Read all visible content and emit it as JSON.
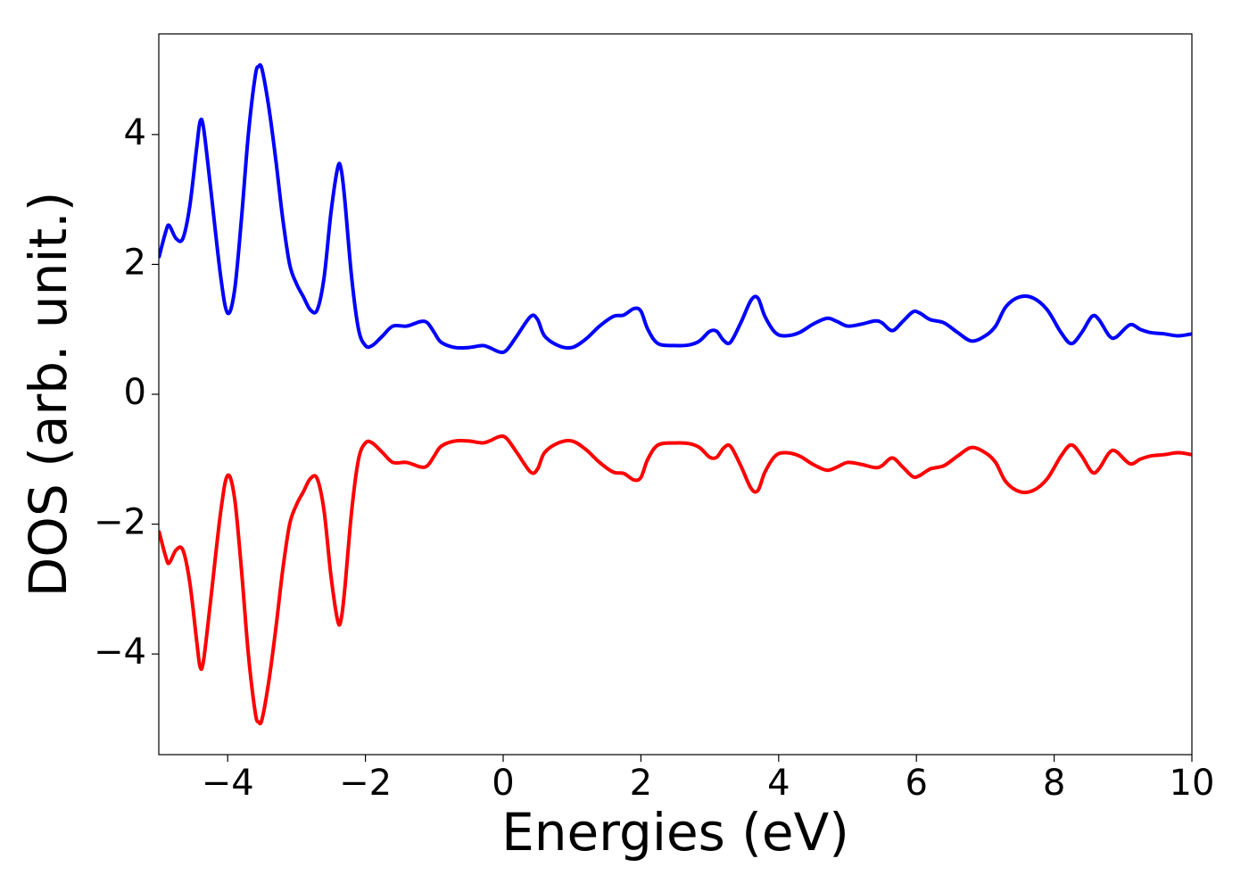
{
  "chart_data": {
    "type": "line",
    "xlabel": "Energies (eV)",
    "ylabel": "DOS (arb. unit.)",
    "x": [
      -5,
      -4.9,
      -4.85,
      -4.75,
      -4.65,
      -4.55,
      -4.45,
      -4.4,
      -4.35,
      -4.25,
      -4.1,
      -4.0,
      -3.9,
      -3.8,
      -3.7,
      -3.6,
      -3.55,
      -3.5,
      -3.4,
      -3.3,
      -3.2,
      -3.1,
      -3.0,
      -2.9,
      -2.8,
      -2.7,
      -2.6,
      -2.5,
      -2.4,
      -2.35,
      -2.3,
      -2.2,
      -2.1,
      -2.0,
      -1.9,
      -1.75,
      -1.6,
      -1.4,
      -1.2,
      -1.1,
      -1.0,
      -0.9,
      -0.7,
      -0.5,
      -0.3,
      -0.2,
      -0.05,
      0.05,
      0.2,
      0.4,
      0.5,
      0.6,
      0.8,
      1.0,
      1.2,
      1.4,
      1.6,
      1.75,
      1.9,
      2.0,
      2.1,
      2.25,
      2.5,
      2.7,
      2.85,
      3.0,
      3.1,
      3.2,
      3.3,
      3.45,
      3.6,
      3.7,
      3.8,
      3.95,
      4.1,
      4.3,
      4.5,
      4.7,
      4.85,
      5.0,
      5.2,
      5.4,
      5.5,
      5.65,
      5.8,
      5.95,
      6.05,
      6.2,
      6.4,
      6.6,
      6.8,
      7.0,
      7.15,
      7.3,
      7.5,
      7.7,
      7.9,
      8.1,
      8.25,
      8.4,
      8.55,
      8.65,
      8.8,
      8.9,
      9.1,
      9.25,
      9.4,
      9.6,
      9.8,
      10
    ],
    "series": [
      {
        "color": "#0000ff",
        "values": [
          2.1,
          2.5,
          2.6,
          2.4,
          2.4,
          2.9,
          3.8,
          4.2,
          4.1,
          3.2,
          1.8,
          1.25,
          1.6,
          2.7,
          4.0,
          4.9,
          5.05,
          5.0,
          4.4,
          3.6,
          2.7,
          2.0,
          1.7,
          1.5,
          1.3,
          1.3,
          1.8,
          2.8,
          3.5,
          3.45,
          3.0,
          1.8,
          1.0,
          0.75,
          0.75,
          0.9,
          1.05,
          1.05,
          1.12,
          1.1,
          0.95,
          0.8,
          0.72,
          0.72,
          0.75,
          0.72,
          0.65,
          0.68,
          0.9,
          1.2,
          1.15,
          0.9,
          0.75,
          0.72,
          0.85,
          1.05,
          1.2,
          1.22,
          1.32,
          1.28,
          1.0,
          0.78,
          0.75,
          0.76,
          0.82,
          0.97,
          0.97,
          0.83,
          0.8,
          1.1,
          1.45,
          1.48,
          1.2,
          0.95,
          0.9,
          0.95,
          1.08,
          1.17,
          1.12,
          1.05,
          1.08,
          1.13,
          1.1,
          0.98,
          1.12,
          1.27,
          1.25,
          1.15,
          1.1,
          0.95,
          0.82,
          0.9,
          1.05,
          1.35,
          1.5,
          1.48,
          1.3,
          0.95,
          0.78,
          0.95,
          1.2,
          1.15,
          0.9,
          0.88,
          1.07,
          1.0,
          0.95,
          0.93,
          0.9,
          0.93
        ]
      },
      {
        "color": "#ff0000",
        "values": [
          -2.1,
          -2.5,
          -2.6,
          -2.4,
          -2.4,
          -2.9,
          -3.8,
          -4.2,
          -4.1,
          -3.2,
          -1.8,
          -1.25,
          -1.6,
          -2.7,
          -4.0,
          -4.9,
          -5.05,
          -5.0,
          -4.4,
          -3.6,
          -2.7,
          -2.0,
          -1.7,
          -1.5,
          -1.3,
          -1.3,
          -1.8,
          -2.8,
          -3.5,
          -3.45,
          -3.0,
          -1.8,
          -1.0,
          -0.75,
          -0.75,
          -0.9,
          -1.05,
          -1.05,
          -1.12,
          -1.1,
          -0.95,
          -0.8,
          -0.72,
          -0.72,
          -0.75,
          -0.72,
          -0.65,
          -0.68,
          -0.9,
          -1.2,
          -1.15,
          -0.9,
          -0.75,
          -0.72,
          -0.85,
          -1.05,
          -1.2,
          -1.22,
          -1.32,
          -1.28,
          -1.0,
          -0.78,
          -0.75,
          -0.76,
          -0.82,
          -0.97,
          -0.97,
          -0.83,
          -0.8,
          -1.1,
          -1.45,
          -1.48,
          -1.2,
          -0.95,
          -0.9,
          -0.95,
          -1.08,
          -1.17,
          -1.12,
          -1.05,
          -1.08,
          -1.13,
          -1.1,
          -0.98,
          -1.12,
          -1.27,
          -1.25,
          -1.15,
          -1.1,
          -0.95,
          -0.82,
          -0.9,
          -1.05,
          -1.35,
          -1.5,
          -1.48,
          -1.3,
          -0.95,
          -0.78,
          -0.95,
          -1.2,
          -1.15,
          -0.9,
          -0.88,
          -1.07,
          -1.0,
          -0.95,
          -0.93,
          -0.9,
          -0.93
        ]
      }
    ],
    "xlim": [
      -5,
      10
    ],
    "xticks": [
      {
        "value": -4,
        "label": "−4"
      },
      {
        "value": -2,
        "label": "−2"
      },
      0,
      2,
      4,
      6,
      8,
      10
    ],
    "ylim": [
      -5.55,
      5.55
    ],
    "yticks": [
      {
        "value": -4,
        "label": "−4"
      },
      {
        "value": -2,
        "label": "−2"
      },
      0,
      2,
      4
    ]
  }
}
